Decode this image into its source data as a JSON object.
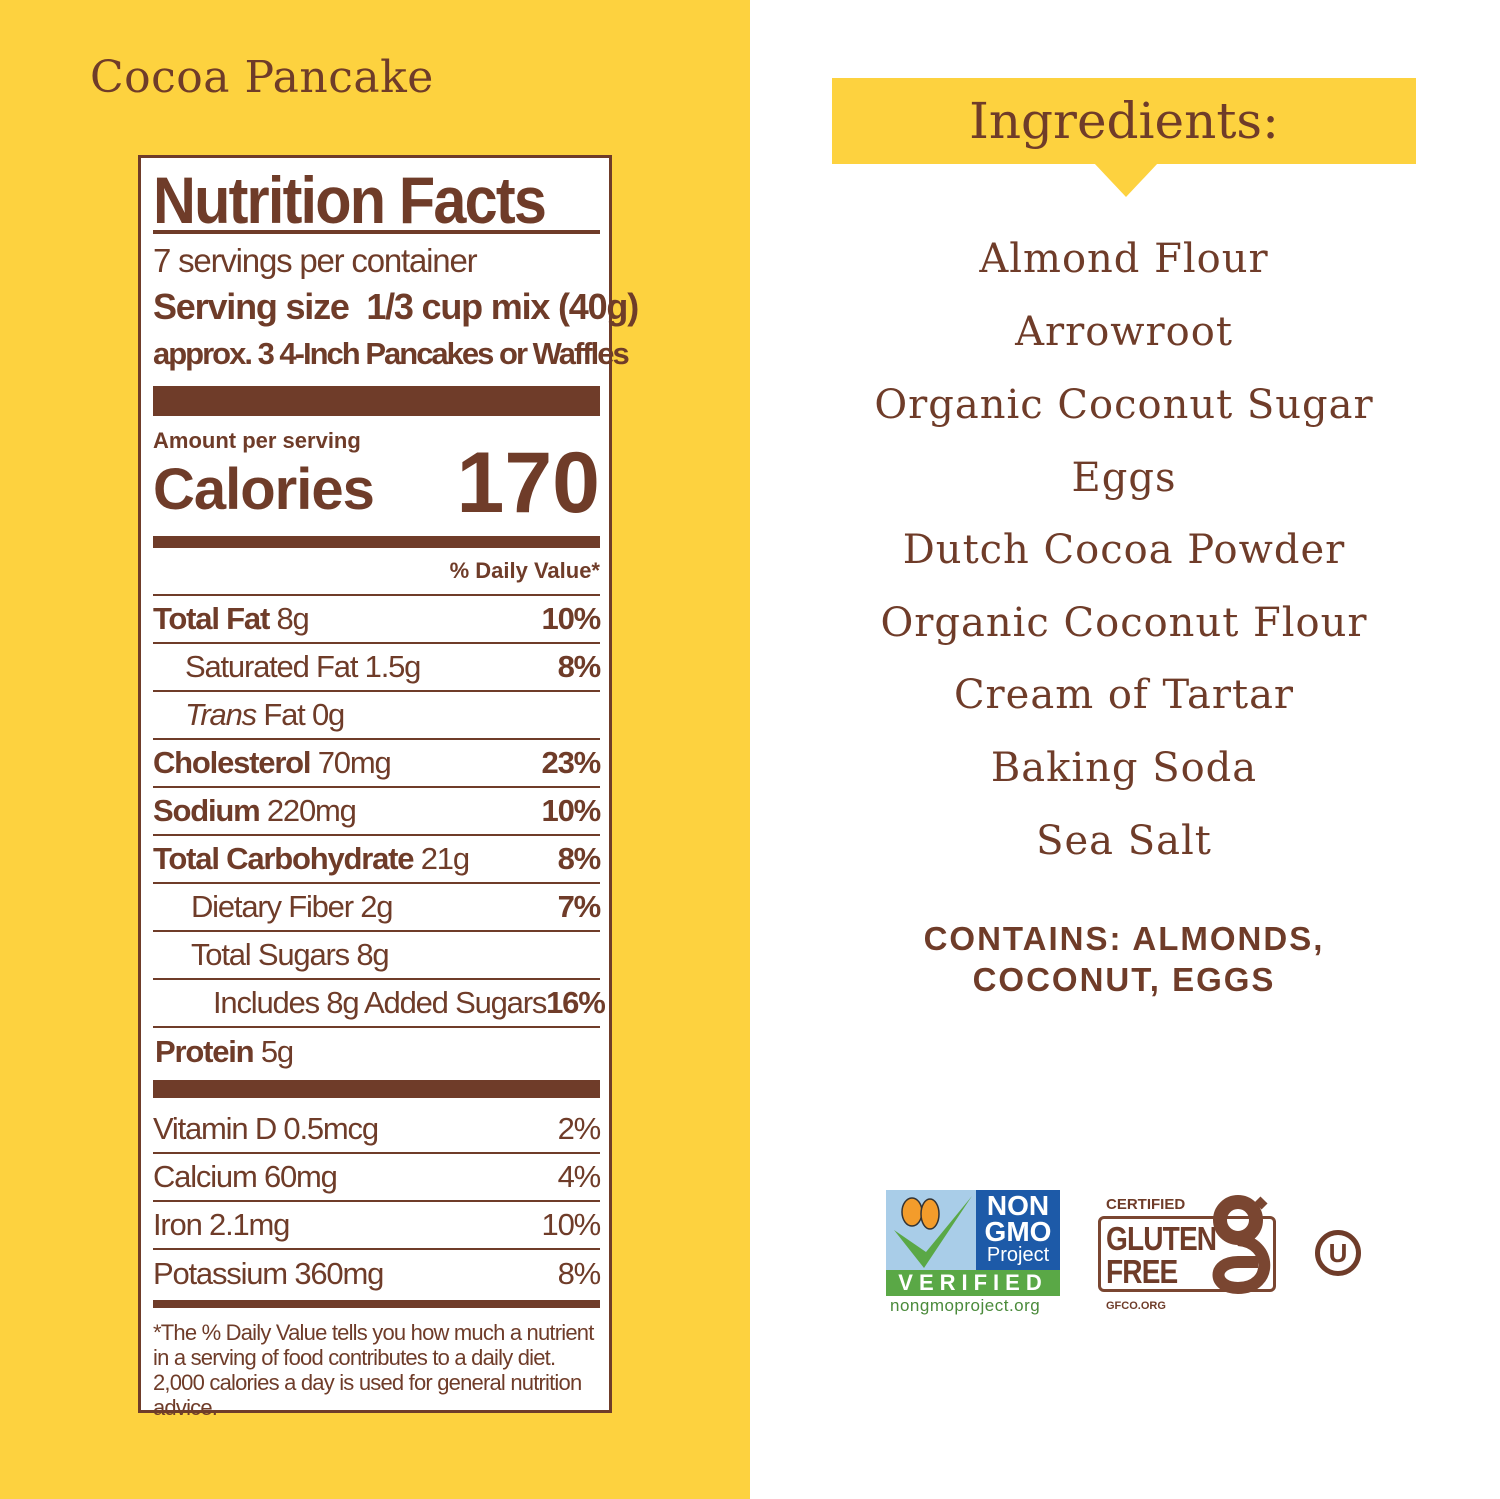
{
  "product_name": "Cocoa Pancake",
  "nutrition": {
    "title": "Nutrition Facts",
    "servings": "7 servings per container",
    "serving_size_label": "Serving size",
    "serving_size_value": "1/3 cup mix (40g)",
    "serving_note": "approx. 3 4-Inch Pancakes or Waffles",
    "amount_per_serving": "Amount per serving",
    "calories_label": "Calories",
    "calories_value": "170",
    "daily_value_header": "% Daily Value*",
    "rows": [
      {
        "name": "Total Fat",
        "amount": "8g",
        "dv": "10%"
      },
      {
        "name": "Saturated Fat",
        "amount": "1.5g",
        "dv": "8%"
      },
      {
        "name": "Trans",
        "amount": "Fat 0g",
        "dv": ""
      },
      {
        "name": "Cholesterol",
        "amount": "70mg",
        "dv": "23%"
      },
      {
        "name": "Sodium",
        "amount": "220mg",
        "dv": "10%"
      },
      {
        "name": "Total Carbohydrate",
        "amount": "21g",
        "dv": "8%"
      },
      {
        "name": "Dietary Fiber",
        "amount": "2g",
        "dv": "7%"
      },
      {
        "name": "Total Sugars",
        "amount": "8g",
        "dv": ""
      },
      {
        "name": "Includes 8g Added Sugars",
        "amount": "",
        "dv": "16%"
      },
      {
        "name": "Protein",
        "amount": "5g",
        "dv": ""
      }
    ],
    "vitamins": [
      {
        "name": "Vitamin D 0.5mcg",
        "dv": "2%"
      },
      {
        "name": "Calcium 60mg",
        "dv": "4%"
      },
      {
        "name": "Iron 2.1mg",
        "dv": "10%"
      },
      {
        "name": "Potassium 360mg",
        "dv": "8%"
      }
    ],
    "footnote": "*The % Daily Value tells you how much a nutrient in a serving of food contributes to a daily diet. 2,000 calories a day is used for general nutrition advice."
  },
  "ingredients": {
    "title": "Ingredients:",
    "items": [
      "Almond Flour",
      "Arrowroot",
      "Organic Coconut Sugar",
      "Eggs",
      "Dutch Cocoa Powder",
      "Organic Coconut Flour",
      "Cream of Tartar",
      "Baking Soda",
      "Sea Salt"
    ],
    "contains_line1": "CONTAINS: ALMONDS,",
    "contains_line2": "COCONUT, EGGS"
  },
  "badges": {
    "non_gmo": {
      "line1": "NON",
      "line2": "GMO",
      "line3": "Project",
      "verified": "VERIFIED",
      "url": "nongmoproject.org"
    },
    "gluten_free": {
      "certified": "CERTIFIED",
      "line1": "GLUTEN",
      "line2": "FREE",
      "url": "GFCO.ORG"
    },
    "kosher": "U"
  },
  "colors": {
    "brown": "#6f3c29",
    "yellow": "#fdd23f"
  }
}
